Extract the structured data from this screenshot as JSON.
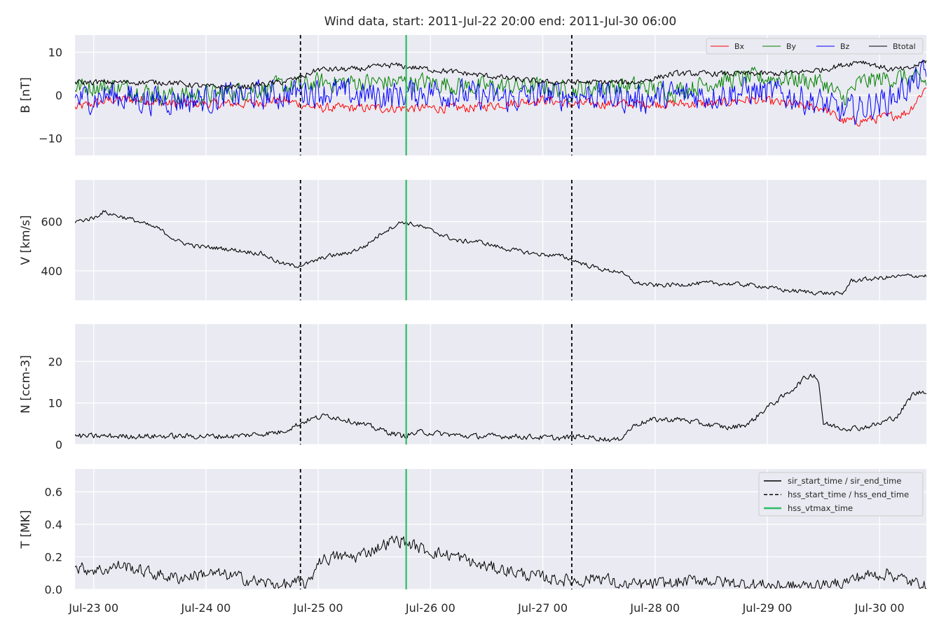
{
  "title": "Wind data, start: 2011-Jul-22 20:00  end: 2011-Jul-30 06:00",
  "x_tick_labels": [
    "Jul-23 00",
    "Jul-24 00",
    "Jul-25 00",
    "Jul-26 00",
    "Jul-27 00",
    "Jul-28 00",
    "Jul-29 00",
    "Jul-30 00"
  ],
  "colors": {
    "bx": "#ff0000",
    "by": "#008000",
    "bz": "#0000ff",
    "btotal": "#000000",
    "plot_background": "#eaeaf2",
    "grid": "#ffffff",
    "vtmax": "#2ebd66"
  },
  "chart_data": {
    "type": "line",
    "time_range_hours": [
      -4,
      178
    ],
    "x_tick_hours": [
      0,
      24,
      48,
      72,
      96,
      120,
      144,
      168
    ],
    "event_markers": {
      "hss_start_time": 44.2,
      "hss_end_time": 102.2,
      "hss_vtmax_time": 66.8
    },
    "legend_bottom": [
      {
        "label": "sir_start_time / sir_end_time",
        "style": "solid",
        "color": "#000000"
      },
      {
        "label": "hss_start_time / hss_end_time",
        "style": "dashed",
        "color": "#000000"
      },
      {
        "label": "hss_vtmax_time",
        "style": "solid",
        "color": "#2ebd66"
      }
    ],
    "panels": [
      {
        "ylabel": "B [nT]",
        "ylim": [
          -14,
          14
        ],
        "yticks": [
          -10,
          0,
          10
        ],
        "ytick_labels": [
          "−10",
          "0",
          "10"
        ],
        "legend": [
          "Bx",
          "By",
          "Bz",
          "Btotal"
        ],
        "series": [
          {
            "name": "Bx",
            "color": "#ff0000",
            "width": 1.0,
            "noise": 1.0,
            "x": [
              -4,
              4,
              10,
              16,
              24,
              32,
              40,
              44,
              48,
              56,
              64,
              72,
              80,
              88,
              96,
              102,
              108,
              116,
              124,
              132,
              140,
              148,
              156,
              160,
              164,
              170,
              174,
              178
            ],
            "y": [
              -3,
              -1,
              -1,
              -2,
              -2,
              -2,
              -1,
              -2,
              -3,
              -3,
              -3,
              -3,
              -3,
              -2,
              -1,
              -2,
              -2,
              -2,
              -2,
              -2,
              -1,
              -2,
              -3,
              -6,
              -6,
              -5,
              -4,
              2
            ]
          },
          {
            "name": "By",
            "color": "#008000",
            "width": 1.0,
            "noise": 2.0,
            "x": [
              -4,
              4,
              10,
              16,
              24,
              32,
              40,
              44,
              48,
              56,
              64,
              72,
              80,
              88,
              96,
              102,
              108,
              116,
              124,
              132,
              140,
              148,
              156,
              160,
              164,
              170,
              174,
              178
            ],
            "y": [
              2,
              2,
              1,
              0,
              0,
              1,
              2,
              2,
              3,
              3,
              3,
              3,
              2,
              2,
              2,
              1,
              2,
              2,
              1,
              3,
              4,
              4,
              3,
              -1,
              3,
              4,
              4,
              3
            ]
          },
          {
            "name": "Bz",
            "color": "#0000ff",
            "width": 1.0,
            "noise": 3.0,
            "x": [
              -4,
              4,
              10,
              16,
              24,
              32,
              40,
              44,
              48,
              56,
              64,
              72,
              80,
              88,
              96,
              102,
              108,
              116,
              124,
              132,
              140,
              148,
              156,
              160,
              164,
              170,
              174,
              178
            ],
            "y": [
              -1,
              0,
              -1,
              -1,
              -1,
              0,
              0,
              1,
              1,
              0,
              0,
              1,
              0,
              -1,
              0,
              0,
              0,
              -1,
              0,
              0,
              1,
              0,
              -2,
              -4,
              -3,
              -1,
              2,
              5
            ]
          },
          {
            "name": "Btotal",
            "color": "#000000",
            "width": 1.1,
            "noise": 0.6,
            "x": [
              -4,
              4,
              10,
              16,
              24,
              32,
              40,
              44,
              48,
              56,
              64,
              72,
              80,
              88,
              96,
              102,
              108,
              116,
              124,
              132,
              140,
              148,
              156,
              160,
              164,
              170,
              174,
              178
            ],
            "y": [
              3,
              3,
              3,
              3,
              2,
              2,
              3,
              4,
              6,
              6,
              7,
              6,
              5,
              4,
              3,
              3,
              3,
              3,
              5,
              5,
              5,
              5,
              6,
              7,
              8,
              6,
              6,
              8
            ]
          }
        ]
      },
      {
        "ylabel": "V [km/s]",
        "ylim": [
          280,
          770
        ],
        "yticks": [
          400,
          600
        ],
        "ytick_labels": [
          "400",
          "600"
        ],
        "series": [
          {
            "name": "V",
            "color": "#000000",
            "width": 1.1,
            "noise": 8,
            "x": [
              -4,
              0,
              2,
              8,
              14,
              18,
              22,
              28,
              36,
              40,
              43,
              46,
              50,
              54,
              58,
              62,
              66,
              70,
              74,
              78,
              82,
              88,
              94,
              100,
              103,
              106,
              110,
              112,
              116,
              120,
              126,
              132,
              138,
              142,
              148,
              152,
              160,
              162,
              168,
              174,
              178
            ],
            "y": [
              600,
              615,
              640,
              610,
              570,
              520,
              500,
              490,
              470,
              430,
              420,
              430,
              460,
              470,
              500,
              560,
              600,
              580,
              550,
              520,
              520,
              490,
              470,
              460,
              440,
              420,
              400,
              400,
              350,
              340,
              345,
              350,
              345,
              340,
              320,
              315,
              305,
              360,
              370,
              380,
              380
            ]
          }
        ]
      },
      {
        "ylabel": "N [ccm-3]",
        "ylim": [
          0,
          29
        ],
        "yticks": [
          0,
          10,
          20
        ],
        "ytick_labels": [
          "0",
          "10",
          "20"
        ],
        "series": [
          {
            "name": "N",
            "color": "#000000",
            "width": 1.1,
            "noise": 0.6,
            "x": [
              -4,
              10,
              20,
              30,
              40,
              44,
              46,
              50,
              54,
              60,
              66,
              70,
              80,
              90,
              100,
              104,
              108,
              112,
              116,
              120,
              126,
              130,
              136,
              140,
              144,
              148,
              150,
              152,
              154,
              155,
              156,
              160,
              164,
              168,
              172,
              175,
              178
            ],
            "y": [
              2,
              2,
              2,
              2,
              3,
              5,
              6,
              7,
              6,
              4,
              2,
              3,
              2,
              2,
              1.5,
              2,
              1.5,
              1,
              5,
              6,
              6,
              5,
              4,
              5,
              9,
              12,
              14,
              16,
              17,
              15,
              5,
              4,
              4,
              5,
              7,
              12,
              13
            ]
          }
        ]
      },
      {
        "ylabel": "T [MK]",
        "ylim": [
          0,
          0.74
        ],
        "yticks": [
          0.0,
          0.2,
          0.4,
          0.6
        ],
        "ytick_labels": [
          "0.0",
          "0.2",
          "0.4",
          "0.6"
        ],
        "series": [
          {
            "name": "T",
            "color": "#000000",
            "width": 1.0,
            "noise": 0.035,
            "x": [
              -4,
              2,
              6,
              12,
              18,
              24,
              30,
              36,
              42,
              44,
              46,
              48,
              52,
              56,
              60,
              64,
              66,
              70,
              74,
              78,
              82,
              88,
              94,
              100,
              104,
              108,
              110,
              112,
              118,
              124,
              130,
              136,
              142,
              148,
              154,
              160,
              164,
              170,
              174,
              178
            ],
            "y": [
              0.13,
              0.12,
              0.15,
              0.1,
              0.07,
              0.1,
              0.08,
              0.04,
              0.03,
              0.04,
              0.03,
              0.18,
              0.2,
              0.2,
              0.25,
              0.3,
              0.3,
              0.25,
              0.22,
              0.2,
              0.15,
              0.12,
              0.08,
              0.06,
              0.05,
              0.08,
              0.06,
              0.02,
              0.03,
              0.04,
              0.06,
              0.04,
              0.03,
              0.02,
              0.02,
              0.04,
              0.08,
              0.1,
              0.05,
              0.02
            ]
          }
        ]
      }
    ]
  }
}
